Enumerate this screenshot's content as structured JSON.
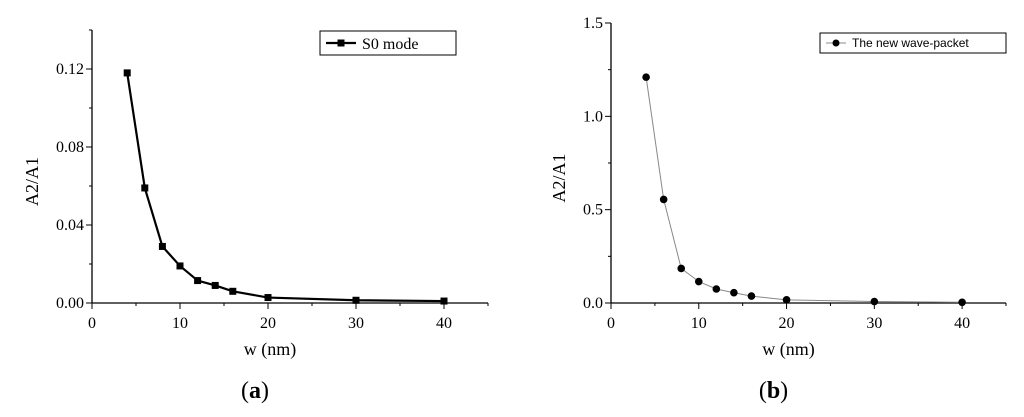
{
  "chart_data": [
    {
      "type": "line",
      "panel_label_letter": "a",
      "xlabel": "w (nm)",
      "ylabel": "A2/A1",
      "xlim": [
        0,
        45
      ],
      "ylim": [
        0,
        0.14
      ],
      "xticks": [
        0,
        10,
        20,
        30,
        40
      ],
      "yticks": [
        0.0,
        0.04,
        0.08,
        0.12
      ],
      "ytick_labels": [
        "0.00",
        "0.04",
        "0.08",
        "0.12"
      ],
      "xtick_labels": [
        "0",
        "10",
        "20",
        "30",
        "40"
      ],
      "legend_position": "top-right",
      "series": [
        {
          "name": "S0 mode",
          "marker": "square",
          "color": "#000000",
          "x": [
            4,
            6,
            8,
            10,
            12,
            14,
            16,
            20,
            30,
            40
          ],
          "y": [
            0.118,
            0.059,
            0.029,
            0.019,
            0.0115,
            0.009,
            0.006,
            0.0028,
            0.0014,
            0.001
          ]
        }
      ]
    },
    {
      "type": "line",
      "panel_label_letter": "b",
      "xlabel": "w (nm)",
      "ylabel": "A2/A1",
      "xlim": [
        0,
        45
      ],
      "ylim": [
        0,
        1.5
      ],
      "xticks": [
        0,
        10,
        20,
        30,
        40
      ],
      "yticks": [
        0.0,
        0.5,
        1.0,
        1.5
      ],
      "ytick_labels": [
        "0.0",
        "0.5",
        "1.0",
        "1.5"
      ],
      "xtick_labels": [
        "0",
        "10",
        "20",
        "30",
        "40"
      ],
      "legend_position": "top-right",
      "series": [
        {
          "name": "The new wave-packet",
          "marker": "circle",
          "color": "#000000",
          "line_color": "#888888",
          "x": [
            4,
            6,
            8,
            10,
            12,
            14,
            16,
            20,
            30,
            40
          ],
          "y": [
            1.21,
            0.555,
            0.185,
            0.115,
            0.075,
            0.055,
            0.037,
            0.017,
            0.008,
            0.004
          ]
        }
      ]
    }
  ]
}
